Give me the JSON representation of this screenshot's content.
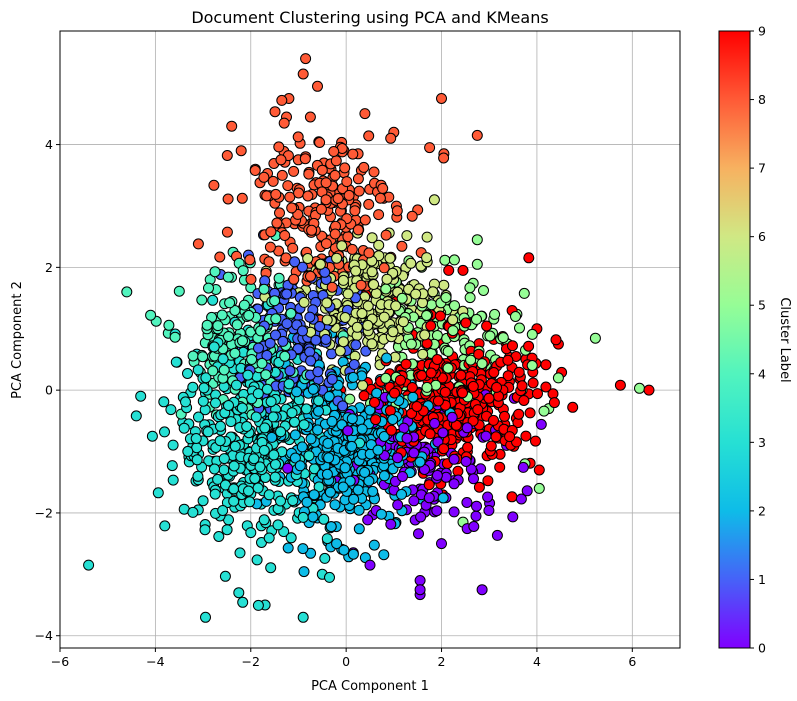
{
  "chart_data": {
    "type": "scatter",
    "title": "Document Clustering using PCA and KMeans",
    "xlabel": "PCA Component 1",
    "ylabel": "PCA Component 2",
    "xlim": [
      -6,
      7
    ],
    "ylim": [
      -4.2,
      5.85
    ],
    "xticks": [
      -6,
      -4,
      -2,
      0,
      2,
      4,
      6
    ],
    "yticks": [
      -4,
      -2,
      0,
      2,
      4
    ],
    "grid": true,
    "point_style": {
      "edge_color": "#000000",
      "note": "points colored by cluster label"
    },
    "colorbar": {
      "label": "Cluster Label",
      "range": [
        0,
        9
      ],
      "ticks": [
        0,
        1,
        2,
        3,
        4,
        5,
        6,
        7,
        8,
        9
      ],
      "colormap": "rainbow"
    },
    "clusters": [
      {
        "label": 0,
        "color": "#8000ff",
        "center": [
          1.7,
          -1.2
        ],
        "spread": [
          0.9,
          0.55
        ],
        "count": 160
      },
      {
        "label": 1,
        "color": "#4662f8",
        "center": [
          -1.0,
          0.9
        ],
        "spread": [
          0.6,
          0.6
        ],
        "count": 170
      },
      {
        "label": 2,
        "color": "#0ebce8",
        "center": [
          0.0,
          -1.0
        ],
        "spread": [
          0.75,
          0.65
        ],
        "count": 420
      },
      {
        "label": 3,
        "color": "#26e0d4",
        "center": [
          -1.9,
          -0.8
        ],
        "spread": [
          0.8,
          0.8
        ],
        "count": 440
      },
      {
        "label": 4,
        "color": "#52f4be",
        "center": [
          -2.2,
          0.7
        ],
        "spread": [
          0.6,
          0.55
        ],
        "count": 170
      },
      {
        "label": 5,
        "color": "#96fd96",
        "center": [
          2.0,
          0.8
        ],
        "spread": [
          0.9,
          0.55
        ],
        "count": 150
      },
      {
        "label": 6,
        "color": "#d0e884",
        "center": [
          0.6,
          1.4
        ],
        "spread": [
          0.75,
          0.45
        ],
        "count": 260
      },
      {
        "label": 8,
        "color": "#ff5a36",
        "center": [
          -0.6,
          3.0
        ],
        "spread": [
          0.8,
          0.65
        ],
        "count": 230
      },
      {
        "label": 9,
        "color": "#ff0000",
        "center": [
          2.3,
          -0.2
        ],
        "spread": [
          0.8,
          0.55
        ],
        "count": 420
      }
    ],
    "outliers": [
      {
        "x": -5.4,
        "y": -2.85,
        "label": 3
      },
      {
        "x": -4.6,
        "y": 1.6,
        "label": 4
      },
      {
        "x": -4.1,
        "y": 1.22,
        "label": 4
      },
      {
        "x": -4.4,
        "y": -0.42,
        "label": 3
      },
      {
        "x": -2.95,
        "y": -3.7,
        "label": 3
      },
      {
        "x": -0.9,
        "y": -3.7,
        "label": 3
      },
      {
        "x": -1.7,
        "y": -3.5,
        "label": 3
      },
      {
        "x": -2.25,
        "y": -3.3,
        "label": 3
      },
      {
        "x": -0.85,
        "y": 5.4,
        "label": 8
      },
      {
        "x": -0.9,
        "y": 5.15,
        "label": 8
      },
      {
        "x": -0.6,
        "y": 4.95,
        "label": 8
      },
      {
        "x": -1.2,
        "y": 4.75,
        "label": 8
      },
      {
        "x": -1.35,
        "y": 4.72,
        "label": 8
      },
      {
        "x": -1.25,
        "y": 4.45,
        "label": 8
      },
      {
        "x": -0.75,
        "y": 4.45,
        "label": 8
      },
      {
        "x": -2.4,
        "y": 4.3,
        "label": 8
      },
      {
        "x": -1.3,
        "y": 4.35,
        "label": 8
      },
      {
        "x": 2.0,
        "y": 4.75,
        "label": 8
      },
      {
        "x": 2.75,
        "y": 4.15,
        "label": 8
      },
      {
        "x": 1.0,
        "y": 4.2,
        "label": 8
      },
      {
        "x": 1.75,
        "y": 3.95,
        "label": 8
      },
      {
        "x": 2.05,
        "y": 3.85,
        "label": 8
      },
      {
        "x": -2.2,
        "y": 3.9,
        "label": 8
      },
      {
        "x": 0.25,
        "y": 3.85,
        "label": 8
      },
      {
        "x": 1.85,
        "y": 3.1,
        "label": 6
      },
      {
        "x": 2.75,
        "y": 2.45,
        "label": 5
      },
      {
        "x": 2.75,
        "y": 2.05,
        "label": 5
      },
      {
        "x": 5.75,
        "y": 0.08,
        "label": 9
      },
      {
        "x": 6.35,
        "y": 0.0,
        "label": 9
      },
      {
        "x": 6.15,
        "y": 0.03,
        "label": 5
      },
      {
        "x": 4.75,
        "y": -0.28,
        "label": 9
      },
      {
        "x": 4.4,
        "y": 0.82,
        "label": 9
      },
      {
        "x": 4.45,
        "y": 0.75,
        "label": 9
      },
      {
        "x": 4.0,
        "y": 1.0,
        "label": 9
      },
      {
        "x": 4.05,
        "y": -1.6,
        "label": 5
      },
      {
        "x": 4.05,
        "y": -1.3,
        "label": 9
      },
      {
        "x": 2.45,
        "y": -2.15,
        "label": 5
      },
      {
        "x": 1.55,
        "y": -3.1,
        "label": 0
      },
      {
        "x": 1.55,
        "y": -3.25,
        "label": 0
      },
      {
        "x": 1.55,
        "y": -3.33,
        "label": 0
      },
      {
        "x": 2.85,
        "y": -3.25,
        "label": 0
      },
      {
        "x": 2.0,
        "y": -2.5,
        "label": 0
      },
      {
        "x": 0.15,
        "y": -2.65,
        "label": 0
      },
      {
        "x": 0.5,
        "y": -2.85,
        "label": 0
      },
      {
        "x": -0.2,
        "y": -2.5,
        "label": 2
      },
      {
        "x": -0.35,
        "y": -3.05,
        "label": 3
      },
      {
        "x": -0.5,
        "y": -3.0,
        "label": 3
      },
      {
        "x": -3.3,
        "y": -0.55,
        "label": 3
      },
      {
        "x": -3.2,
        "y": -1.0,
        "label": 3
      },
      {
        "x": -3.0,
        "y": -1.8,
        "label": 3
      },
      {
        "x": -3.1,
        "y": -1.95,
        "label": 3
      },
      {
        "x": -2.85,
        "y": 1.8,
        "label": 4
      },
      {
        "x": -2.75,
        "y": 1.93,
        "label": 4
      },
      {
        "x": -2.3,
        "y": 2.18,
        "label": 8
      },
      {
        "x": -2.05,
        "y": 2.2,
        "label": 1
      },
      {
        "x": 2.45,
        "y": 1.95,
        "label": 9
      },
      {
        "x": 2.15,
        "y": 1.95,
        "label": 9
      },
      {
        "x": 3.55,
        "y": 1.2,
        "label": 5
      },
      {
        "x": 3.75,
        "y": -1.2,
        "label": 5
      },
      {
        "x": 4.25,
        "y": -0.3,
        "label": 5
      },
      {
        "x": 4.45,
        "y": 0.2,
        "label": 5
      }
    ]
  }
}
